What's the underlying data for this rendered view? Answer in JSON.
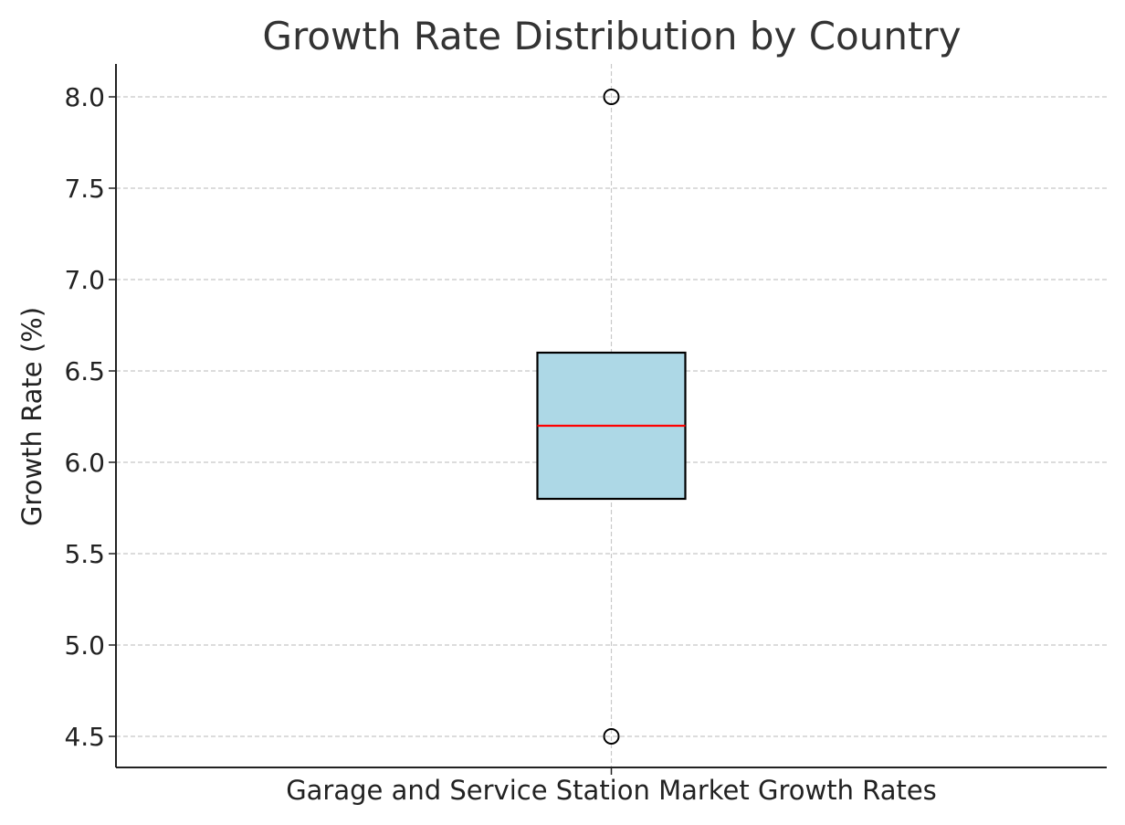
{
  "chart_data": {
    "type": "box",
    "title": "Growth Rate Distribution by Country",
    "ylabel": "Growth Rate (%)",
    "categories": [
      "Garage and Service Station Market Growth Rates"
    ],
    "ylim": [
      4.33,
      8.18
    ],
    "yticks": [
      4.5,
      5.0,
      5.5,
      6.0,
      6.5,
      7.0,
      7.5,
      8.0
    ],
    "ytick_labels": [
      "4.5",
      "5.0",
      "5.5",
      "6.0",
      "6.5",
      "7.0",
      "7.5",
      "8.0"
    ],
    "grid": true,
    "boxes": [
      {
        "category": "Garage and Service Station Market Growth Rates",
        "q1": 5.8,
        "median": 6.2,
        "q3": 6.6,
        "whisker_low": 5.8,
        "whisker_high": 6.6,
        "outliers": [
          4.5,
          8.0
        ]
      }
    ],
    "colors": {
      "box_fill": "#add8e6",
      "box_edge": "#000000",
      "median": "#ff0000",
      "grid": "#c8c8c8",
      "axis": "#222222"
    }
  }
}
